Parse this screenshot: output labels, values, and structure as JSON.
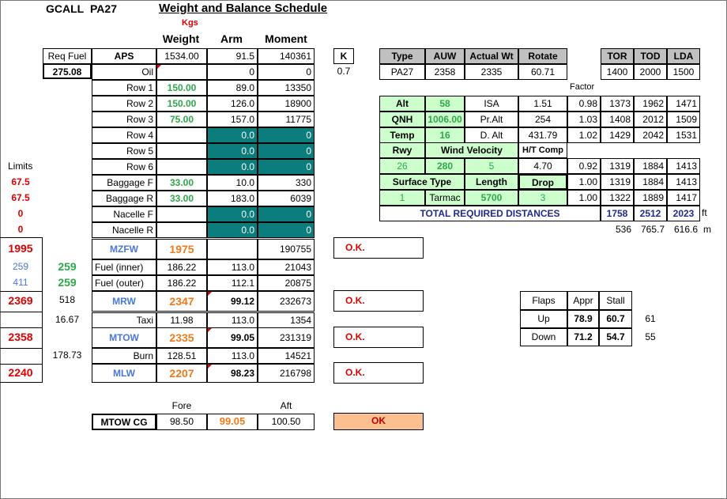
{
  "header": {
    "reg": "GCALL",
    "type": "PA27",
    "title": "Weight and Balance Schedule",
    "units": "Kgs"
  },
  "cols": {
    "weight": "Weight",
    "arm": "Arm",
    "moment": "Moment"
  },
  "req_fuel": {
    "label": "Req Fuel",
    "value": "275.08"
  },
  "k": {
    "label": "K",
    "value": "0.7"
  },
  "limits_label": "Limits",
  "rows": [
    {
      "label": "APS",
      "weight": "1534.00",
      "arm": "91.5",
      "moment": "140361"
    },
    {
      "label": "Oil",
      "weight": "",
      "arm": "0",
      "moment": "0"
    },
    {
      "label": "Row 1",
      "weight": "150.00",
      "arm": "89.0",
      "moment": "13350"
    },
    {
      "label": "Row 2",
      "weight": "150.00",
      "arm": "126.0",
      "moment": "18900"
    },
    {
      "label": "Row 3",
      "weight": "75.00",
      "arm": "157.0",
      "moment": "11775"
    },
    {
      "label": "Row 4",
      "weight": "",
      "arm": "0.0",
      "moment": "0"
    },
    {
      "label": "Row 5",
      "weight": "",
      "arm": "0.0",
      "moment": "0"
    },
    {
      "label": "Row 6",
      "weight": "",
      "arm": "0.0",
      "moment": "0"
    },
    {
      "label": "Baggage F",
      "weight": "33.00",
      "arm": "10.0",
      "moment": "330"
    },
    {
      "label": "Baggage R",
      "weight": "33.00",
      "arm": "183.0",
      "moment": "6039"
    },
    {
      "label": "Nacelle F",
      "weight": "",
      "arm": "0.0",
      "moment": "0"
    },
    {
      "label": "Nacelle R",
      "weight": "",
      "arm": "0.0",
      "moment": "0"
    }
  ],
  "limits": [
    "67.5",
    "67.5",
    "0",
    "0"
  ],
  "mzfw": {
    "limit": "1995",
    "label": "MZFW",
    "weight": "1975",
    "moment": "190755",
    "status": "O.K."
  },
  "fuel_inner": {
    "limit": "259",
    "value": "259",
    "label": "Fuel (inner)",
    "weight": "186.22",
    "arm": "113.0",
    "moment": "21043"
  },
  "fuel_outer": {
    "limit": "411",
    "value": "259",
    "label": "Fuel (outer)",
    "weight": "186.22",
    "arm": "112.1",
    "moment": "20875"
  },
  "mrw": {
    "limit": "2369",
    "extra": "518",
    "label": "MRW",
    "weight": "2347",
    "arm": "99.12",
    "moment": "232673",
    "status": "O.K."
  },
  "taxi": {
    "extra": "16.67",
    "label": "Taxi",
    "weight": "11.98",
    "arm": "113.0",
    "moment": "1354"
  },
  "mtow": {
    "limit": "2358",
    "label": "MTOW",
    "weight": "2335",
    "arm": "99.05",
    "moment": "231319",
    "status": "O.K."
  },
  "burn": {
    "extra": "178.73",
    "label": "Burn",
    "weight": "128.51",
    "arm": "113.0",
    "moment": "14521"
  },
  "mlw": {
    "limit": "2240",
    "label": "MLW",
    "weight": "2207",
    "arm": "98.23",
    "moment": "216798",
    "status": "O.K."
  },
  "cg": {
    "fore_label": "Fore",
    "aft_label": "Aft",
    "label": "MTOW CG",
    "fore": "98.50",
    "value": "99.05",
    "aft": "100.50",
    "status": "OK"
  },
  "perf": {
    "headers": [
      "Type",
      "AUW",
      "Actual Wt",
      "Rotate"
    ],
    "values": [
      "PA27",
      "2358",
      "2335",
      "60.71"
    ],
    "dist_headers": [
      "TOR",
      "TOD",
      "LDA"
    ],
    "dist_values": [
      "1400",
      "2000",
      "1500"
    ],
    "factor_label": "Factor",
    "alt": {
      "label": "Alt",
      "value": "58",
      "name": "ISA",
      "val": "1.51",
      "factor": "0.98",
      "d": [
        "1373",
        "1962",
        "1471"
      ]
    },
    "qnh": {
      "label": "QNH",
      "value": "1006.00",
      "name": "Pr.Alt",
      "val": "254",
      "factor": "1.03",
      "d": [
        "1408",
        "2012",
        "1509"
      ]
    },
    "temp": {
      "label": "Temp",
      "value": "16",
      "name": "D. Alt",
      "val": "431.79",
      "factor": "1.02",
      "d": [
        "1429",
        "2042",
        "1531"
      ]
    },
    "rwy": {
      "label": "Rwy",
      "wind_label": "Wind Velocity",
      "ht_label": "H/T Comp",
      "rwy": "26",
      "dir": "280",
      "speed": "5",
      "ht": "4.70",
      "factor": "0.92",
      "d": [
        "1319",
        "1884",
        "1413"
      ]
    },
    "surf": {
      "label": "Surface Type",
      "len_label": "Length",
      "drop_label": "Drop",
      "num": "1",
      "type": "Tarmac",
      "length": "5700",
      "drop": "3",
      "factor": "1.00",
      "d": [
        "1319",
        "1884",
        "1413"
      ],
      "factor2": "1.00",
      "d2": [
        "1322",
        "1889",
        "1417"
      ]
    },
    "total": {
      "label": "TOTAL REQUIRED DISTANCES",
      "d": [
        "1758",
        "2512",
        "2023"
      ],
      "unit": "ft"
    },
    "metric": {
      "d": [
        "536",
        "765.7",
        "616.6"
      ],
      "unit": "m"
    }
  },
  "speeds": {
    "headers": [
      "Flaps",
      "Appr",
      "Stall"
    ],
    "rows": [
      {
        "flaps": "Up",
        "appr": "78.9",
        "stall": "60.7",
        "extra": "61"
      },
      {
        "flaps": "Down",
        "appr": "71.2",
        "stall": "54.7",
        "extra": "55"
      }
    ]
  }
}
